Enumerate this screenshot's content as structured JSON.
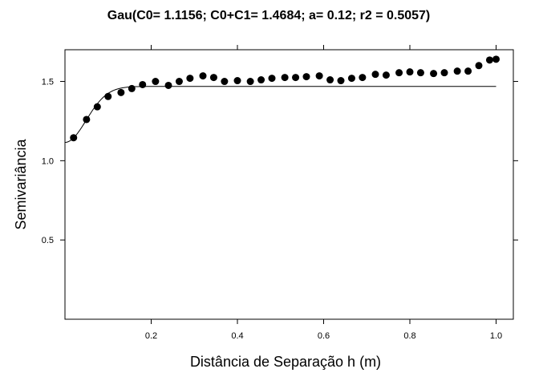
{
  "chart_data": {
    "type": "scatter",
    "title": "Gau(C0= 1.1156; C0+C1= 1.4684; a= 0.12; r2 = 0.5057)",
    "xlabel": "Distância de Separação h (m)",
    "ylabel": "Semivariância",
    "xlim": [
      0.0,
      1.04
    ],
    "ylim": [
      0.0,
      1.7
    ],
    "xticks": [
      0.2,
      0.4,
      0.6,
      0.8,
      1.0
    ],
    "xtick_labels": [
      "0.2",
      "0.4",
      "0.6",
      "0.8",
      "1.0"
    ],
    "yticks": [
      0.5,
      1.0,
      1.5
    ],
    "ytick_labels": [
      "0.5",
      "1.0",
      "1.5"
    ],
    "grid": false,
    "series": [
      {
        "kind": "points",
        "x": [
          0.02,
          0.05,
          0.075,
          0.1,
          0.13,
          0.155,
          0.18,
          0.21,
          0.24,
          0.265,
          0.29,
          0.32,
          0.345,
          0.37,
          0.4,
          0.43,
          0.455,
          0.48,
          0.51,
          0.535,
          0.56,
          0.59,
          0.615,
          0.64,
          0.665,
          0.69,
          0.72,
          0.745,
          0.775,
          0.8,
          0.825,
          0.855,
          0.88,
          0.91,
          0.935,
          0.96,
          0.985,
          1.0
        ],
        "y": [
          1.145,
          1.26,
          1.34,
          1.405,
          1.43,
          1.455,
          1.48,
          1.5,
          1.475,
          1.5,
          1.52,
          1.535,
          1.525,
          1.5,
          1.505,
          1.5,
          1.51,
          1.52,
          1.525,
          1.525,
          1.53,
          1.535,
          1.51,
          1.505,
          1.52,
          1.525,
          1.545,
          1.54,
          1.555,
          1.56,
          1.555,
          1.55,
          1.555,
          1.565,
          1.565,
          1.6,
          1.635,
          1.64
        ],
        "color": "#000000"
      },
      {
        "kind": "model-curve",
        "model": "gaussian",
        "c0": 1.1156,
        "sill": 1.4684,
        "a": 0.12,
        "x_range": [
          0.0,
          1.0
        ],
        "color": "#000000"
      }
    ]
  }
}
